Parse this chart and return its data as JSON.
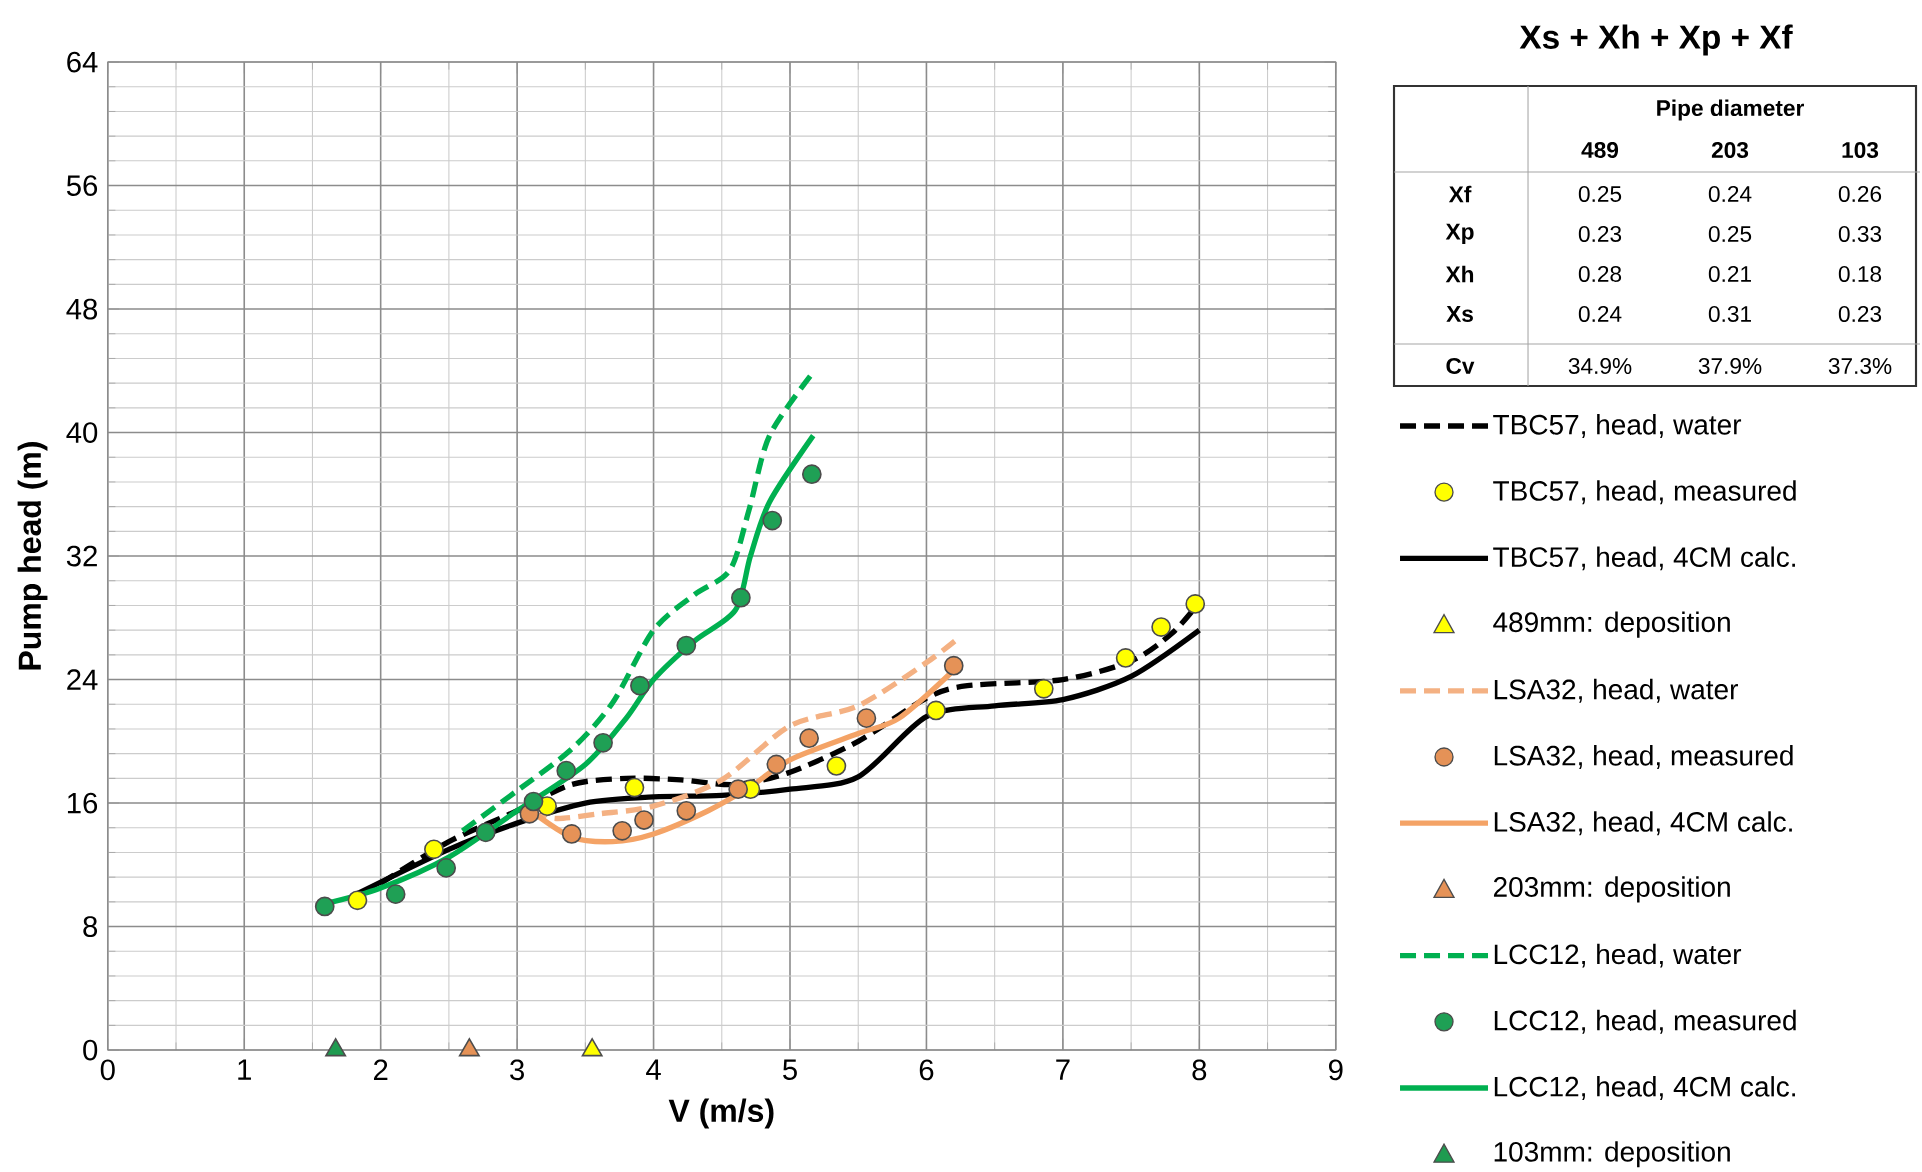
{
  "chart_data": {
    "type": "line",
    "xlabel": "V (m/s)",
    "ylabel": "Pump head (m)",
    "xlim": [
      0,
      9
    ],
    "xticks": [
      0,
      1,
      2,
      3,
      4,
      5,
      6,
      7,
      8,
      9
    ],
    "ylim": [
      0,
      64
    ],
    "yticks": [
      0,
      8,
      16,
      24,
      32,
      40,
      48,
      56,
      64
    ],
    "grid": true,
    "legend": "right",
    "annotations": [
      "Xs + Xh + Xp + Xf",
      "Pipe diameter",
      "489",
      "203",
      "103",
      "Xf",
      "0.25",
      "0.24",
      "0.26",
      "Xp",
      "0.23",
      "0.25",
      "0.33",
      "Xh",
      "0.28",
      "0.21",
      "0.18",
      "Xs",
      "0.24",
      "0.31",
      "0.23",
      "Cv",
      "34.9%",
      "37.9%",
      "37.3%"
    ],
    "series": [
      {
        "name": "TBC57, head, water",
        "line_style": "dashed",
        "color": "#000000",
        "x": [
          2.0,
          2.5,
          3.0,
          3.4,
          3.8,
          4.2,
          4.6,
          5.0,
          5.5,
          6.0,
          6.3,
          7.0,
          7.5,
          7.8,
          8.0
        ],
        "values": [
          10.8,
          13.5,
          15.5,
          17.2,
          17.6,
          17.5,
          17.2,
          18.0,
          20.0,
          22.8,
          23.6,
          24.0,
          25.2,
          27.0,
          29.0
        ]
      },
      {
        "name": "TBC57, head, measured",
        "type": "scatter",
        "marker": "circle",
        "color": "#ffff00",
        "x": [
          1.83,
          2.39,
          3.22,
          3.86,
          4.71,
          5.34,
          6.07,
          6.86,
          7.46,
          7.72,
          7.97
        ],
        "values": [
          9.7,
          13.0,
          15.8,
          17.0,
          16.9,
          18.4,
          22.0,
          23.4,
          25.4,
          27.4,
          28.9
        ]
      },
      {
        "name": "TBC57, head, 4CM calc.",
        "line_style": "solid",
        "color": "#000000",
        "x": [
          1.8,
          2.5,
          3.0,
          3.5,
          4.0,
          4.5,
          5.0,
          5.5,
          6.0,
          6.5,
          7.0,
          7.5,
          8.0
        ],
        "values": [
          10.0,
          13.0,
          14.7,
          16.0,
          16.4,
          16.5,
          16.9,
          17.7,
          21.6,
          22.3,
          22.7,
          24.2,
          27.2
        ]
      },
      {
        "name": "489mm: deposition",
        "type": "scatter",
        "marker": "triangle",
        "color": "#ffff00",
        "x": [
          3.55
        ],
        "values": [
          0
        ]
      },
      {
        "name": "LSA32, head, water",
        "line_style": "dashed",
        "color": "#f4b183",
        "x": [
          3.1,
          3.3,
          3.6,
          4.0,
          4.5,
          5.0,
          5.5,
          6.0,
          6.25
        ],
        "values": [
          15.3,
          15.0,
          15.3,
          15.8,
          17.5,
          21.0,
          22.3,
          25.1,
          26.8
        ]
      },
      {
        "name": "LSA32, head, measured",
        "type": "scatter",
        "marker": "circle",
        "color": "#e59257",
        "x": [
          3.09,
          3.4,
          3.77,
          3.93,
          4.24,
          4.62,
          4.9,
          5.14,
          5.56,
          6.2
        ],
        "values": [
          15.3,
          14.0,
          14.2,
          14.9,
          15.5,
          16.9,
          18.5,
          20.2,
          21.5,
          24.9
        ]
      },
      {
        "name": "LSA32, head, 4CM calc.",
        "line_style": "solid",
        "color": "#f4a366",
        "x": [
          3.1,
          3.4,
          3.7,
          4.0,
          4.4,
          4.7,
          5.0,
          5.5,
          5.8,
          6.2
        ],
        "values": [
          15.5,
          13.8,
          13.5,
          14.0,
          15.5,
          17.0,
          18.8,
          20.5,
          21.5,
          24.6
        ]
      },
      {
        "name": "203mm: deposition",
        "type": "scatter",
        "marker": "triangle",
        "color": "#e59257",
        "x": [
          2.65
        ],
        "values": [
          0
        ]
      },
      {
        "name": "LCC12, head, water",
        "line_style": "dashed",
        "color": "#00b050",
        "x": [
          2.6,
          3.0,
          3.4,
          3.7,
          4.0,
          4.3,
          4.56,
          4.7,
          4.85,
          5.17
        ],
        "values": [
          14.2,
          16.8,
          19.5,
          22.5,
          27.2,
          29.5,
          31.1,
          35.0,
          39.8,
          43.9
        ]
      },
      {
        "name": "LCC12, head, measured",
        "type": "scatter",
        "marker": "circle",
        "color": "#1fa055",
        "x": [
          1.59,
          2.11,
          2.48,
          2.77,
          3.12,
          3.36,
          3.63,
          3.9,
          4.24,
          4.64,
          4.87,
          5.16
        ],
        "values": [
          9.3,
          10.1,
          11.8,
          14.1,
          16.1,
          18.1,
          19.9,
          23.6,
          26.2,
          29.3,
          34.3,
          37.3
        ]
      },
      {
        "name": "LCC12, head, 4CM calc.",
        "line_style": "solid",
        "color": "#00b050",
        "x": [
          1.6,
          2.0,
          2.5,
          3.0,
          3.5,
          3.8,
          4.0,
          4.3,
          4.6,
          4.71,
          4.85,
          5.17
        ],
        "values": [
          9.5,
          10.5,
          12.5,
          15.5,
          18.5,
          21.5,
          24.0,
          26.5,
          28.5,
          32.0,
          35.5,
          39.8
        ]
      },
      {
        "name": "103mm: deposition",
        "type": "scatter",
        "marker": "triangle",
        "color": "#1f9b50",
        "x": [
          1.67
        ],
        "values": [
          0
        ]
      }
    ]
  }
}
